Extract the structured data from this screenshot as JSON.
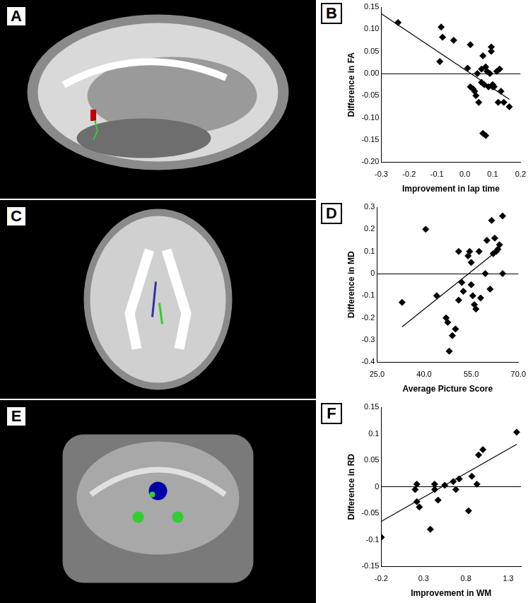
{
  "images": [
    {
      "panel": "A"
    },
    {
      "panel": "C"
    },
    {
      "panel": "E"
    }
  ],
  "chart_data": [
    {
      "type": "scatter",
      "panel": "B",
      "x_label": "Improvement in lap time",
      "y_label": "Difference in FA",
      "xlim": [
        -0.3,
        0.2
      ],
      "xticks": [
        -0.3,
        -0.2,
        -0.1,
        {
          "value": 0,
          "label": "0.0"
        },
        0.1,
        0.2
      ],
      "ylim": [
        -0.2,
        0.15
      ],
      "yticks": [
        {
          "value": -0.2,
          "label": "-0.20"
        },
        -0.15,
        {
          "value": -0.1,
          "label": "-0.10"
        },
        -0.05,
        {
          "value": 0,
          "label": "0.00"
        },
        0.05,
        {
          "value": 0.1,
          "label": "0.10"
        },
        0.15
      ],
      "grid": false,
      "series": [
        {
          "type": "scatter",
          "marker": "diamond",
          "color": "#000000",
          "x": [
            -0.24,
            -0.085,
            -0.08,
            -0.09,
            -0.04,
            0.02,
            0.01,
            0.02,
            0.03,
            0.035,
            0.04,
            0.045,
            0.05,
            0.06,
            0.06,
            0.065,
            0.07,
            0.075,
            0.08,
            0.065,
            0.075,
            0.085,
            0.095,
            0.095,
            0.1,
            0.1,
            0.105,
            0.115,
            0.12,
            0.125,
            0.13,
            0.14,
            0.16,
            0.09
          ],
          "values": [
            0.115,
            0.105,
            0.082,
            0.027,
            0.075,
            0.065,
            0.012,
            -0.03,
            -0.035,
            -0.04,
            -0.05,
            0.0,
            -0.065,
            -0.02,
            0.01,
            0.04,
            -0.025,
            0.015,
            0.005,
            -0.135,
            -0.14,
            -0.03,
            0.05,
            0.06,
            -0.025,
            -0.03,
            -0.03,
            0.005,
            -0.065,
            0.01,
            -0.04,
            -0.065,
            -0.075,
            0.0
          ]
        },
        {
          "type": "line",
          "line_style": "solid",
          "color": "#000000",
          "x": [
            -0.3,
            0.16
          ],
          "values": [
            0.135,
            -0.058
          ]
        }
      ]
    },
    {
      "type": "scatter",
      "panel": "D",
      "x_label": "Average Picture Score",
      "y_label": "Difference in MD",
      "xlim": [
        25,
        70
      ],
      "xticks": [
        {
          "value": 25,
          "label": "25.0"
        },
        {
          "value": 40,
          "label": "40.0"
        },
        {
          "value": 55,
          "label": "55.0"
        },
        {
          "value": 70,
          "label": "70.0"
        }
      ],
      "ylim": [
        -0.4,
        0.3
      ],
      "yticks": [
        -0.4,
        -0.3,
        -0.2,
        -0.1,
        0,
        0.1,
        0.2,
        0.3
      ],
      "grid": false,
      "series": [
        {
          "type": "scatter",
          "marker": "diamond",
          "color": "#000000",
          "x": [
            33,
            40.5,
            44,
            47,
            47.5,
            48,
            49,
            50,
            51,
            51,
            52,
            52.5,
            54,
            54.5,
            55,
            55,
            55.5,
            56,
            56.5,
            57.5,
            58,
            59.5,
            60,
            61,
            61.5,
            62,
            62.5,
            63,
            63.5,
            64,
            65,
            65
          ],
          "values": [
            -0.13,
            0.2,
            -0.1,
            -0.2,
            -0.22,
            -0.35,
            -0.28,
            -0.25,
            -0.12,
            0.1,
            -0.04,
            -0.08,
            0.08,
            0.1,
            0.05,
            -0.05,
            -0.1,
            -0.14,
            -0.16,
            0.1,
            -0.11,
            0.0,
            0.15,
            -0.07,
            0.24,
            0.09,
            0.16,
            0.1,
            0.11,
            0.13,
            0.26,
            0.0
          ]
        },
        {
          "type": "line",
          "line_style": "solid",
          "color": "#000000",
          "x": [
            33,
            63
          ],
          "values": [
            -0.24,
            0.1
          ]
        }
      ]
    },
    {
      "type": "scatter",
      "panel": "F",
      "x_label": "Improvement in WM",
      "y_label": "Difference in RD",
      "xlim": [
        -0.2,
        1.45
      ],
      "xticks": [
        -0.2,
        0.3,
        0.8,
        1.3
      ],
      "ylim": [
        -0.15,
        0.15
      ],
      "yticks": [
        -0.15,
        -0.1,
        -0.05,
        0,
        0.05,
        0.1,
        0.15
      ],
      "grid": false,
      "series": [
        {
          "type": "scatter",
          "marker": "diamond",
          "color": "#000000",
          "x": [
            -0.2,
            0.2,
            0.22,
            0.22,
            0.25,
            0.43,
            0.43,
            0.38,
            0.47,
            0.55,
            0.65,
            0.68,
            0.72,
            0.83,
            0.87,
            0.93,
            0.95,
            1.0,
            1.4
          ],
          "values": [
            -0.095,
            -0.005,
            0.005,
            -0.028,
            -0.038,
            0.005,
            -0.005,
            -0.08,
            -0.025,
            0.003,
            0.01,
            -0.005,
            0.015,
            -0.045,
            0.02,
            0.005,
            0.06,
            0.07,
            0.103
          ]
        },
        {
          "type": "line",
          "line_style": "solid",
          "color": "#000000",
          "x": [
            -0.2,
            1.4
          ],
          "values": [
            -0.065,
            0.08
          ]
        }
      ]
    }
  ]
}
